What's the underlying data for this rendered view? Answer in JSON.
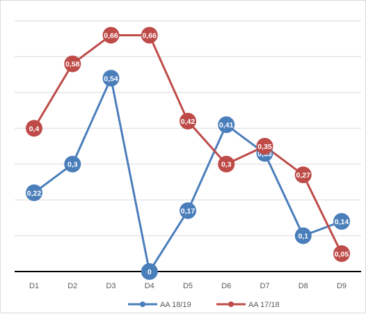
{
  "chart_data": {
    "type": "line",
    "title": "",
    "xlabel": "",
    "ylabel": "",
    "categories": [
      "D1",
      "D2",
      "D3",
      "D4",
      "D5",
      "D6",
      "D7",
      "D8",
      "D9"
    ],
    "ylim": [
      0,
      0.7
    ],
    "grid": true,
    "legend_position": "bottom",
    "series": [
      {
        "name": "AA 18/19",
        "color": "#4a7ebb",
        "values": [
          0.22,
          0.3,
          0.54,
          0,
          0.17,
          0.41,
          0.33,
          0.1,
          0.14
        ],
        "labels": [
          "0,22",
          "0,3",
          "0,54",
          "0",
          "0,17",
          "0,41",
          "0,33",
          "0,1",
          "0,14"
        ]
      },
      {
        "name": "AA 17/18",
        "color": "#be4b48",
        "values": [
          0.4,
          0.58,
          0.66,
          0.66,
          0.42,
          0.3,
          0.35,
          0.27,
          0.05
        ],
        "labels": [
          "0,4",
          "0,58",
          "0,66",
          "0,66",
          "0,42",
          "0,3",
          "0,35",
          "0,27",
          "0,05"
        ]
      }
    ]
  }
}
